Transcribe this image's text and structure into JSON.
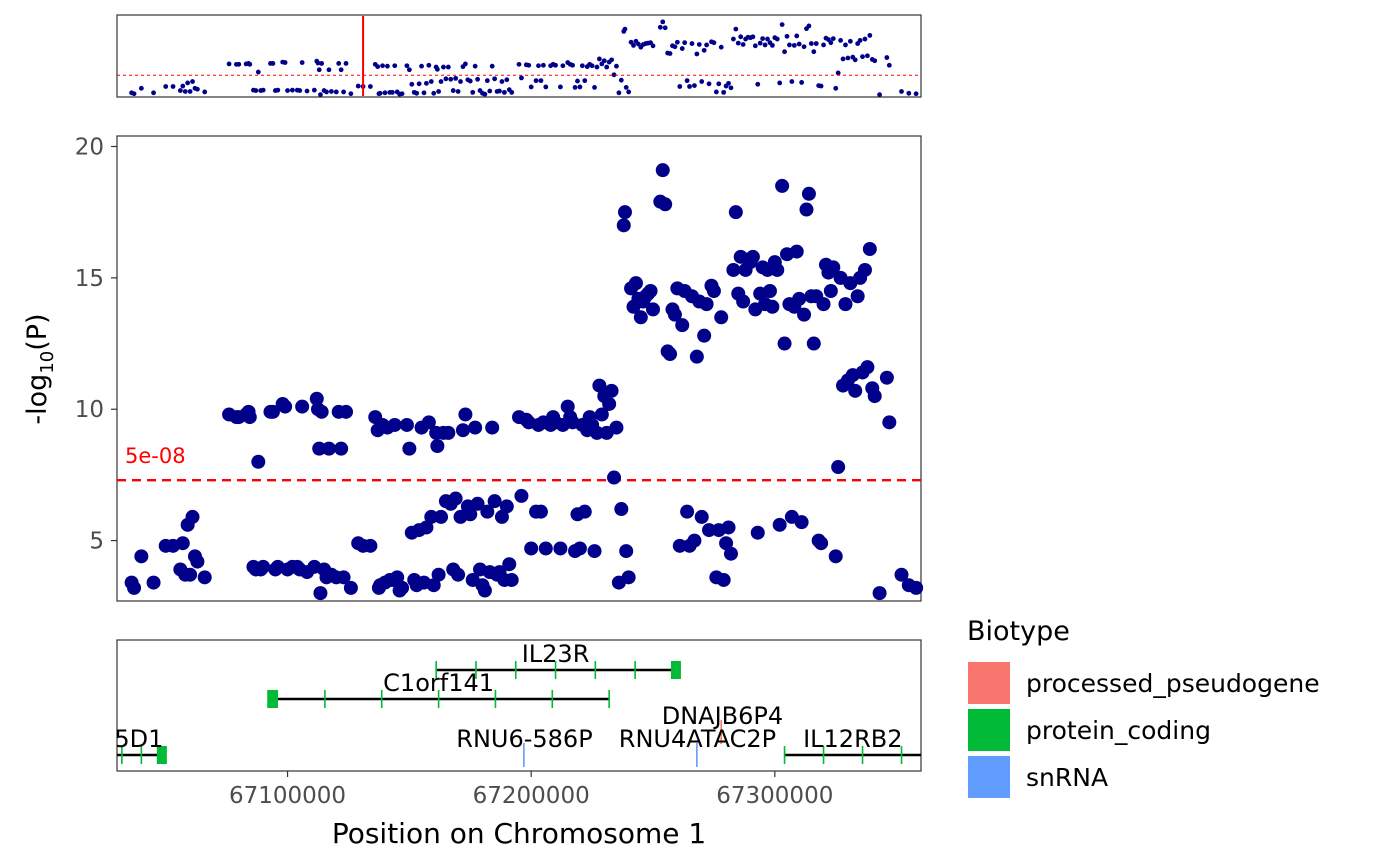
{
  "chart_data": [
    {
      "panel": "overview",
      "type": "scatter",
      "xlim": [
        67030000,
        67360000
      ],
      "ylim": [
        2.7,
        20.4
      ],
      "threshold": 7.3,
      "highlight_x": 67131000,
      "color": "#00008B",
      "threshold_color": "#FF0000",
      "highlight_color": "#FF0000"
    },
    {
      "panel": "regional",
      "type": "scatter",
      "ylabel_base": "-log",
      "ylabel_sub": "10",
      "ylabel_var": "(P)",
      "xlim": [
        67030000,
        67360000
      ],
      "ylim": [
        2.7,
        20.4
      ],
      "yticks": [
        5,
        10,
        15,
        20
      ],
      "threshold": 7.3,
      "threshold_label": "5e-08",
      "point_color": "#00008B",
      "threshold_color": "#FF0000",
      "points": [
        [
          67036000,
          3.4
        ],
        [
          67037000,
          3.2
        ],
        [
          67040000,
          4.4
        ],
        [
          67045000,
          3.4
        ],
        [
          67050000,
          4.8
        ],
        [
          67053000,
          4.8
        ],
        [
          67056000,
          3.9
        ],
        [
          67057000,
          4.9
        ],
        [
          67058000,
          3.7
        ],
        [
          67059000,
          5.6
        ],
        [
          67060000,
          3.7
        ],
        [
          67061000,
          5.9
        ],
        [
          67062000,
          4.4
        ],
        [
          67063000,
          4.2
        ],
        [
          67066000,
          3.6
        ],
        [
          67076000,
          9.8
        ],
        [
          67079000,
          9.7
        ],
        [
          67080000,
          9.7
        ],
        [
          67083000,
          9.8
        ],
        [
          67084000,
          9.9
        ],
        [
          67084500,
          9.7
        ],
        [
          67086000,
          4.0
        ],
        [
          67087000,
          3.9
        ],
        [
          67088000,
          8.0
        ],
        [
          67089000,
          3.9
        ],
        [
          67090000,
          4.0
        ],
        [
          67093000,
          9.9
        ],
        [
          67094000,
          9.9
        ],
        [
          67095000,
          3.9
        ],
        [
          67096000,
          4.0
        ],
        [
          67098000,
          10.2
        ],
        [
          67099000,
          10.1
        ],
        [
          67100000,
          3.9
        ],
        [
          67102000,
          4.0
        ],
        [
          67104000,
          4.0
        ],
        [
          67105000,
          3.9
        ],
        [
          67106000,
          10.1
        ],
        [
          67108000,
          3.8
        ],
        [
          67111000,
          4.0
        ],
        [
          67112000,
          10.4
        ],
        [
          67112500,
          10.0
        ],
        [
          67113000,
          8.5
        ],
        [
          67113500,
          3.0
        ],
        [
          67114000,
          9.9
        ],
        [
          67115000,
          3.9
        ],
        [
          67116000,
          3.6
        ],
        [
          67117000,
          8.5
        ],
        [
          67118000,
          3.7
        ],
        [
          67120000,
          3.6
        ],
        [
          67121000,
          9.9
        ],
        [
          67122000,
          8.5
        ],
        [
          67123000,
          3.6
        ],
        [
          67124000,
          9.9
        ],
        [
          67126000,
          3.2
        ],
        [
          67129000,
          4.9
        ],
        [
          67131000,
          4.8
        ],
        [
          67134000,
          4.8
        ],
        [
          67136000,
          9.7
        ],
        [
          67137000,
          9.2
        ],
        [
          67137500,
          3.2
        ],
        [
          67138000,
          3.3
        ],
        [
          67139000,
          9.4
        ],
        [
          67140000,
          3.4
        ],
        [
          67141000,
          9.3
        ],
        [
          67142000,
          3.5
        ],
        [
          67143000,
          3.5
        ],
        [
          67144000,
          9.4
        ],
        [
          67145000,
          3.6
        ],
        [
          67146000,
          3.1
        ],
        [
          67147000,
          3.2
        ],
        [
          67149000,
          9.4
        ],
        [
          67150000,
          8.5
        ],
        [
          67151000,
          5.3
        ],
        [
          67152000,
          3.5
        ],
        [
          67153000,
          3.3
        ],
        [
          67154000,
          5.4
        ],
        [
          67155000,
          9.3
        ],
        [
          67156000,
          3.4
        ],
        [
          67157000,
          5.5
        ],
        [
          67158000,
          9.5
        ],
        [
          67159000,
          5.9
        ],
        [
          67160000,
          3.3
        ],
        [
          67161000,
          9.1
        ],
        [
          67161500,
          8.6
        ],
        [
          67162000,
          3.7
        ],
        [
          67163000,
          5.9
        ],
        [
          67164000,
          9.1
        ],
        [
          67165000,
          6.5
        ],
        [
          67166000,
          9.1
        ],
        [
          67167000,
          6.4
        ],
        [
          67168000,
          3.9
        ],
        [
          67169000,
          6.6
        ],
        [
          67170000,
          3.7
        ],
        [
          67171000,
          5.9
        ],
        [
          67172000,
          9.2
        ],
        [
          67173000,
          9.8
        ],
        [
          67174000,
          6.3
        ],
        [
          67175000,
          6.0
        ],
        [
          67176000,
          3.5
        ],
        [
          67177000,
          9.3
        ],
        [
          67178000,
          6.4
        ],
        [
          67179000,
          3.9
        ],
        [
          67180000,
          3.3
        ],
        [
          67181000,
          3.1
        ],
        [
          67182000,
          6.1
        ],
        [
          67183000,
          3.8
        ],
        [
          67184000,
          9.3
        ],
        [
          67185000,
          6.5
        ],
        [
          67186000,
          3.7
        ],
        [
          67187000,
          3.8
        ],
        [
          67188000,
          5.9
        ],
        [
          67189000,
          3.5
        ],
        [
          67190000,
          6.3
        ],
        [
          67191000,
          4.1
        ],
        [
          67192000,
          3.5
        ],
        [
          67195000,
          9.7
        ],
        [
          67196000,
          6.7
        ],
        [
          67198000,
          9.6
        ],
        [
          67199000,
          9.5
        ],
        [
          67200000,
          4.7
        ],
        [
          67202000,
          6.1
        ],
        [
          67203000,
          9.4
        ],
        [
          67204000,
          6.1
        ],
        [
          67205000,
          9.5
        ],
        [
          67206000,
          4.7
        ],
        [
          67208000,
          9.4
        ],
        [
          67209000,
          9.7
        ],
        [
          67210000,
          9.5
        ],
        [
          67212000,
          4.7
        ],
        [
          67213000,
          9.4
        ],
        [
          67215000,
          10.1
        ],
        [
          67216000,
          9.7
        ],
        [
          67217000,
          9.5
        ],
        [
          67218000,
          4.6
        ],
        [
          67219000,
          6.0
        ],
        [
          67220000,
          4.7
        ],
        [
          67221000,
          9.4
        ],
        [
          67222000,
          6.1
        ],
        [
          67223000,
          9.2
        ],
        [
          67224000,
          9.7
        ],
        [
          67225000,
          9.4
        ],
        [
          67226000,
          4.6
        ],
        [
          67227000,
          9.1
        ],
        [
          67228000,
          10.9
        ],
        [
          67229000,
          9.8
        ],
        [
          67230000,
          10.5
        ],
        [
          67231000,
          9.1
        ],
        [
          67232000,
          10.2
        ],
        [
          67233000,
          10.7
        ],
        [
          67234000,
          7.4
        ],
        [
          67235000,
          9.3
        ],
        [
          67236000,
          3.4
        ],
        [
          67237000,
          6.2
        ],
        [
          67238000,
          17.0
        ],
        [
          67238500,
          17.5
        ],
        [
          67239000,
          4.6
        ],
        [
          67240000,
          3.6
        ],
        [
          67241000,
          14.6
        ],
        [
          67242000,
          13.9
        ],
        [
          67243000,
          14.8
        ],
        [
          67244000,
          14.2
        ],
        [
          67245000,
          13.5
        ],
        [
          67246000,
          14.1
        ],
        [
          67247000,
          14.3
        ],
        [
          67248000,
          14.4
        ],
        [
          67249000,
          14.5
        ],
        [
          67250000,
          13.8
        ],
        [
          67253000,
          17.9
        ],
        [
          67254000,
          19.1
        ],
        [
          67255000,
          17.8
        ],
        [
          67256000,
          12.2
        ],
        [
          67257000,
          12.1
        ],
        [
          67258000,
          13.8
        ],
        [
          67259000,
          13.6
        ],
        [
          67260000,
          14.6
        ],
        [
          67261000,
          4.8
        ],
        [
          67262000,
          13.2
        ],
        [
          67263000,
          14.5
        ],
        [
          67264000,
          6.1
        ],
        [
          67265000,
          4.8
        ],
        [
          67266000,
          14.3
        ],
        [
          67267000,
          5.0
        ],
        [
          67268000,
          12.0
        ],
        [
          67269000,
          14.1
        ],
        [
          67270000,
          5.9
        ],
        [
          67271000,
          12.8
        ],
        [
          67272000,
          14.0
        ],
        [
          67273000,
          5.4
        ],
        [
          67274000,
          14.7
        ],
        [
          67275000,
          14.5
        ],
        [
          67276000,
          3.6
        ],
        [
          67277000,
          5.4
        ],
        [
          67278000,
          13.5
        ],
        [
          67279000,
          3.5
        ],
        [
          67280000,
          4.9
        ],
        [
          67281000,
          5.5
        ],
        [
          67282000,
          4.5
        ],
        [
          67283000,
          15.3
        ],
        [
          67284000,
          17.5
        ],
        [
          67285000,
          14.4
        ],
        [
          67286000,
          15.8
        ],
        [
          67287000,
          14.1
        ],
        [
          67288000,
          15.3
        ],
        [
          67289000,
          15.7
        ],
        [
          67290000,
          15.6
        ],
        [
          67291000,
          15.8
        ],
        [
          67292000,
          13.8
        ],
        [
          67293000,
          5.3
        ],
        [
          67294000,
          14.4
        ],
        [
          67295000,
          15.4
        ],
        [
          67296000,
          14.0
        ],
        [
          67297000,
          15.3
        ],
        [
          67298000,
          14.5
        ],
        [
          67299000,
          13.9
        ],
        [
          67300000,
          15.6
        ],
        [
          67301000,
          15.3
        ],
        [
          67302000,
          5.6
        ],
        [
          67303000,
          18.5
        ],
        [
          67304000,
          12.5
        ],
        [
          67305000,
          15.9
        ],
        [
          67306000,
          14.0
        ],
        [
          67307000,
          5.9
        ],
        [
          67308000,
          13.9
        ],
        [
          67309000,
          16.0
        ],
        [
          67310000,
          14.2
        ],
        [
          67311000,
          5.7
        ],
        [
          67312000,
          13.6
        ],
        [
          67313000,
          17.6
        ],
        [
          67314000,
          18.2
        ],
        [
          67315000,
          14.3
        ],
        [
          67316000,
          12.5
        ],
        [
          67317000,
          14.3
        ],
        [
          67318000,
          5.0
        ],
        [
          67319000,
          4.9
        ],
        [
          67320000,
          14.0
        ],
        [
          67321000,
          15.5
        ],
        [
          67322000,
          15.2
        ],
        [
          67323000,
          14.5
        ],
        [
          67324000,
          15.4
        ],
        [
          67325000,
          4.4
        ],
        [
          67326000,
          7.8
        ],
        [
          67327000,
          15.0
        ],
        [
          67328000,
          10.9
        ],
        [
          67329000,
          14.0
        ],
        [
          67330000,
          11.1
        ],
        [
          67331000,
          14.8
        ],
        [
          67332000,
          11.3
        ],
        [
          67333000,
          10.7
        ],
        [
          67334000,
          14.3
        ],
        [
          67335000,
          15.0
        ],
        [
          67336000,
          11.4
        ],
        [
          67337000,
          15.3
        ],
        [
          67338000,
          11.6
        ],
        [
          67339000,
          16.1
        ],
        [
          67340000,
          10.8
        ],
        [
          67341000,
          10.5
        ],
        [
          67343000,
          3.0
        ],
        [
          67346000,
          11.2
        ],
        [
          67347000,
          9.5
        ],
        [
          67352000,
          3.7
        ],
        [
          67355000,
          3.3
        ],
        [
          67358000,
          3.2
        ]
      ]
    },
    {
      "panel": "genes",
      "type": "gene-track",
      "xlabel": "Position on Chromosome 1",
      "xlim": [
        67030000,
        67360000
      ],
      "xticks": [
        67100000,
        67200000,
        67300000
      ],
      "genes": [
        {
          "name": "IL23R",
          "biotype": "protein_coding",
          "start": 67161000,
          "end": 67259000,
          "row": 0,
          "strand": "+"
        },
        {
          "name": "C1orf141",
          "biotype": "protein_coding",
          "start": 67092000,
          "end": 67232000,
          "row": 1,
          "strand": "-"
        },
        {
          "name": "DNAJB6P4",
          "biotype": "processed_pseudogene",
          "start": 67278000,
          "end": 67279000,
          "row": 2,
          "strand": "+"
        },
        {
          "name": "5D1",
          "biotype": "protein_coding",
          "start": 67000000,
          "end": 67048000,
          "row": 3,
          "strand": "+"
        },
        {
          "name": "RNU6-586P",
          "biotype": "snRNA",
          "start": 67197000,
          "end": 67197500,
          "row": 3,
          "strand": "+"
        },
        {
          "name": "RNU4ATAC2P",
          "biotype": "snRNA",
          "start": 67268000,
          "end": 67268500,
          "row": 3,
          "strand": "+"
        },
        {
          "name": "IL12RB2",
          "biotype": "protein_coding",
          "start": 67304000,
          "end": 67400000,
          "row": 3,
          "strand": "+"
        }
      ]
    }
  ],
  "legend": {
    "title": "Biotype",
    "items": [
      {
        "label": "processed_pseudogene",
        "color": "#F8766D"
      },
      {
        "label": "protein_coding",
        "color": "#00BA38"
      },
      {
        "label": "snRNA",
        "color": "#619CFF"
      }
    ]
  }
}
